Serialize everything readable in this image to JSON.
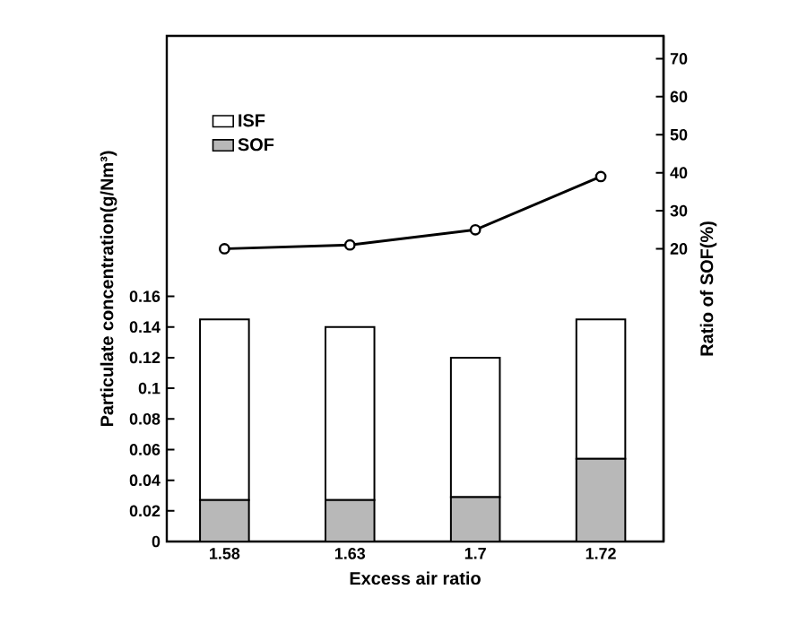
{
  "chart_data": {
    "type": "bar",
    "xlabel": "Excess air ratio",
    "ylabel": "Particulate concentration(g/Nm³)",
    "y2label": "Ratio of SOF(%)",
    "categories": [
      "1.58",
      "1.63",
      "1.7",
      "1.72"
    ],
    "stacked": true,
    "series": [
      {
        "name": "SOF",
        "color": "#b8b8b8",
        "values": [
          0.027,
          0.027,
          0.029,
          0.054
        ]
      },
      {
        "name": "ISF",
        "color": "#ffffff",
        "values": [
          0.118,
          0.113,
          0.091,
          0.091
        ]
      },
      {
        "type": "line",
        "axis": "y2",
        "color": "#000000",
        "values": [
          20,
          21,
          25,
          39
        ]
      }
    ],
    "marker": "circle",
    "ylim": [
      0,
      0.33
    ],
    "yticks": [
      0,
      0.02,
      0.04,
      0.06,
      0.08,
      0.1,
      0.12,
      0.14,
      0.16
    ],
    "y2lim": [
      -57,
      76
    ],
    "y2ticks": [
      20,
      30,
      40,
      50,
      60,
      70
    ],
    "legend": "top left",
    "grid": false
  }
}
